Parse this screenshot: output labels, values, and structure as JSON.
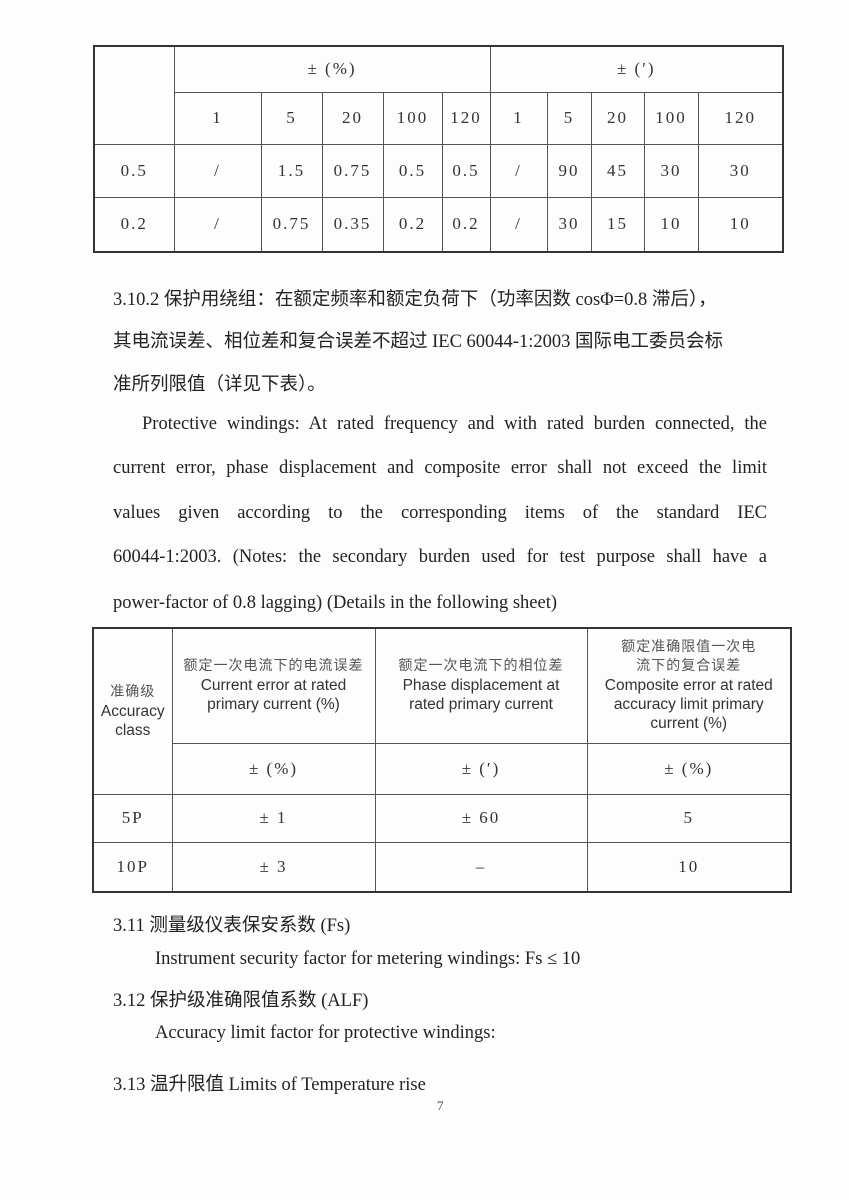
{
  "table1": {
    "group_headers": [
      "± (%)",
      "± (′)"
    ],
    "sub_headers": [
      "1",
      "5",
      "20",
      "100",
      "120",
      "1",
      "5",
      "20",
      "100",
      "120"
    ],
    "rows": [
      {
        "class": "0.5",
        "values": [
          "/",
          "1.5",
          "0.75",
          "0.5",
          "0.5",
          "/",
          "90",
          "45",
          "30",
          "30"
        ]
      },
      {
        "class": "0.2",
        "values": [
          "/",
          "0.75",
          "0.35",
          "0.2",
          "0.2",
          "/",
          "30",
          "15",
          "10",
          "10"
        ]
      }
    ]
  },
  "section_3_10_2": {
    "zh_lines": [
      "3.10.2 保护用绕组：在额定频率和额定负荷下（功率因数 cosΦ=0.8 滞后），",
      "其电流误差、相位差和复合误差不超过 IEC 60044-1:2003 国际电工委员会标",
      "准所列限值（详见下表）。"
    ],
    "en_lines": [
      "Protective windings: At rated frequency and with rated burden connected, the",
      "current error, phase displacement and composite error shall not exceed the limit",
      "values given according to the corresponding items of the standard IEC",
      "60044-1:2003. (Notes: the secondary burden used for test purpose shall have a",
      "power-factor of 0.8 lagging) (Details in the following sheet)"
    ]
  },
  "table2": {
    "headers": [
      {
        "zh": "准确级",
        "en": "Accuracy class"
      },
      {
        "zh": "额定一次电流下的电流误差",
        "en": "Current error at rated primary current (%)"
      },
      {
        "zh": "额定一次电流下的相位差",
        "en": "Phase displacement at rated primary current"
      },
      {
        "zh": "额定准确限值一次电流下的复合误差",
        "en": "Composite error at rated accuracy limit primary current (%)"
      }
    ],
    "units": [
      "± (%)",
      "± (′)",
      "± (%)"
    ],
    "rows": [
      {
        "class": "5P",
        "values": [
          "± 1",
          "± 60",
          "5"
        ]
      },
      {
        "class": "10P",
        "values": [
          "± 3",
          "–",
          "10"
        ]
      }
    ]
  },
  "sections": [
    {
      "heading": "3.11  测量级仪表保安系数 (Fs)",
      "body": "Instrument security factor for metering windings: Fs ≤ 10"
    },
    {
      "heading": "3.12  保护级准确限值系数 (ALF)",
      "body": "Accuracy limit factor for protective windings:"
    },
    {
      "heading": "3.13  温升限值 Limits of Temperature rise",
      "body": ""
    }
  ],
  "page_number": "7"
}
